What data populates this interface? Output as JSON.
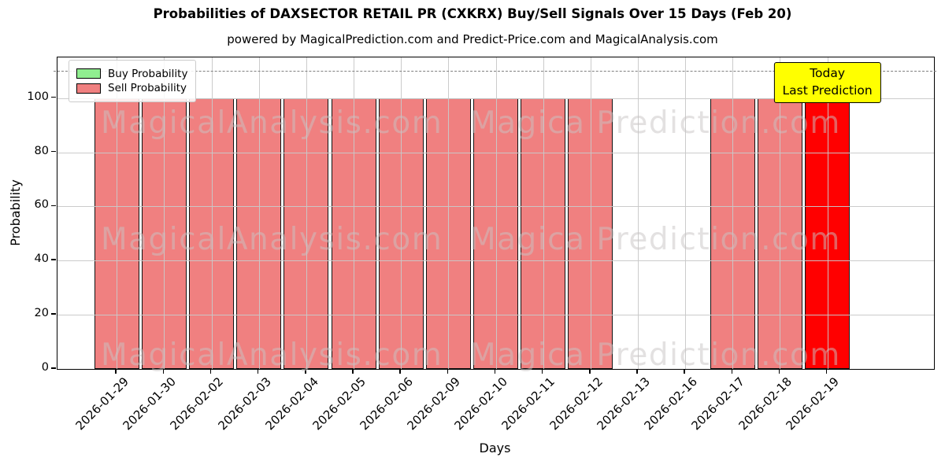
{
  "title": "Probabilities of DAXSECTOR RETAIL PR (CXKRX) Buy/Sell Signals Over 15 Days (Feb 20)",
  "subtitle": "powered by MagicalPrediction.com and Predict-Price.com and MagicalAnalysis.com",
  "legend": {
    "items": [
      {
        "label": "Buy Probability",
        "color": "#90ee90"
      },
      {
        "label": "Sell Probability",
        "color": "#f08080"
      }
    ]
  },
  "annotation": {
    "line1": "Today",
    "line2": "Last Prediction",
    "bg": "#ffff00"
  },
  "watermarks": [
    "MagicalAnalysis.com",
    "Magica Prediction.com"
  ],
  "chart_data": {
    "type": "bar",
    "title": "Probabilities of DAXSECTOR RETAIL PR (CXKRX) Buy/Sell Signals Over 15 Days (Feb 20)",
    "xlabel": "Days",
    "ylabel": "Probability",
    "categories": [
      "2026-01-29",
      "2026-01-30",
      "2026-02-02",
      "2026-02-03",
      "2026-02-04",
      "2026-02-05",
      "2026-02-06",
      "2026-02-09",
      "2026-02-10",
      "2026-02-11",
      "2026-02-12",
      "2026-02-13",
      "2026-02-16",
      "2026-02-17",
      "2026-02-18",
      "2026-02-19"
    ],
    "series": [
      {
        "name": "Buy Probability",
        "color": "#90ee90",
        "values": [
          0,
          0,
          0,
          0,
          0,
          0,
          0,
          0,
          0,
          0,
          0,
          0,
          0,
          0,
          0,
          0
        ]
      },
      {
        "name": "Sell Probability",
        "color": "#f08080",
        "values": [
          100,
          100,
          100,
          100,
          100,
          100,
          100,
          100,
          100,
          100,
          100,
          0,
          0,
          100,
          100,
          100
        ]
      }
    ],
    "highlight": {
      "category": "2026-02-19",
      "color": "#ff0000",
      "note": "Today / Last Prediction"
    },
    "ylim": [
      0,
      115
    ],
    "yticks": [
      0,
      20,
      40,
      60,
      80,
      100
    ],
    "dashed_line_y": 110,
    "grid": true,
    "legend_position": "upper left"
  }
}
